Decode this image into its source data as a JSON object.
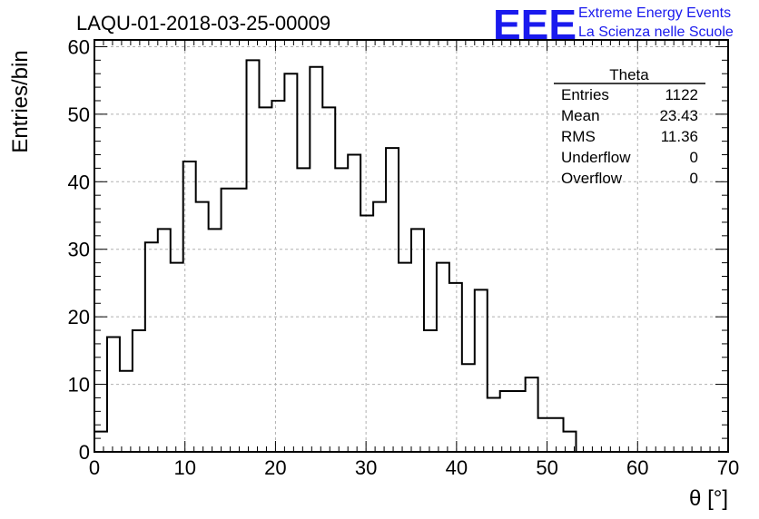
{
  "chart_data": {
    "type": "bar",
    "title": "LAQU-01-2018-03-25-00009",
    "xlabel": "θ [°]",
    "ylabel": "Entries/bin",
    "xlim": [
      0,
      70
    ],
    "ylim": [
      0,
      61
    ],
    "grid": true,
    "bin_width": 1.4,
    "x_ticks": [
      0,
      10,
      20,
      30,
      40,
      50,
      60,
      70
    ],
    "y_ticks": [
      0,
      10,
      20,
      30,
      40,
      50,
      60
    ],
    "values": [
      3,
      17,
      12,
      18,
      31,
      33,
      28,
      43,
      37,
      33,
      39,
      39,
      58,
      51,
      52,
      56,
      42,
      57,
      51,
      42,
      44,
      35,
      37,
      45,
      28,
      33,
      18,
      28,
      25,
      13,
      24,
      8,
      9,
      9,
      11,
      5,
      5,
      3,
      0,
      0,
      0,
      0,
      0,
      0,
      0,
      0,
      0,
      0,
      0,
      0
    ],
    "line_color": "#000000",
    "grid_color": "#b0b0b0"
  },
  "stats_box": {
    "name": "Theta",
    "rows": [
      {
        "label": "Entries",
        "value": "1122"
      },
      {
        "label": "Mean",
        "value": "23.43"
      },
      {
        "label": "RMS",
        "value": "11.36"
      },
      {
        "label": "Underflow",
        "value": "0"
      },
      {
        "label": "Overflow",
        "value": "0"
      }
    ]
  },
  "logo": {
    "mark": "EEE",
    "line1": "Extreme Energy Events",
    "line2": "La Scienza nelle Scuole",
    "color": "#1a1aee"
  }
}
